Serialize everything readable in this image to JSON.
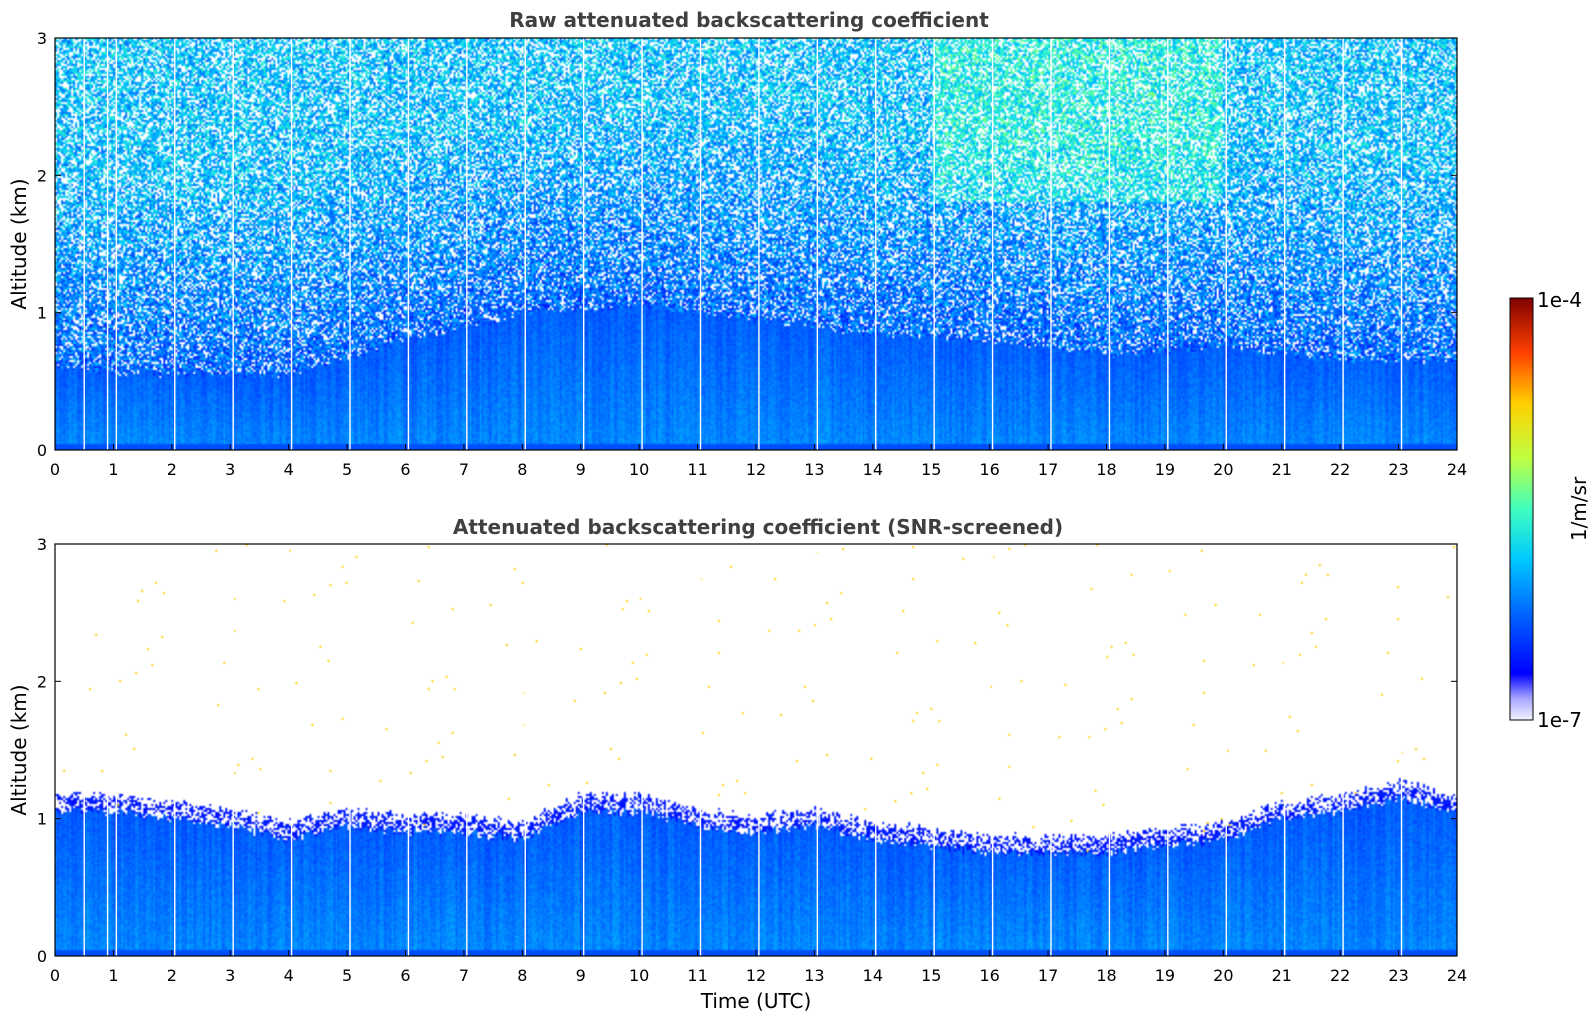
{
  "chart_data": [
    {
      "type": "heatmap",
      "title": "Raw attenuated backscattering coefficient",
      "xlabel": "",
      "ylabel": "Altitude (km)",
      "xlim": [
        0,
        24
      ],
      "ylim": [
        0,
        3
      ],
      "xticks": [
        "0",
        "1",
        "2",
        "3",
        "4",
        "5",
        "6",
        "7",
        "8",
        "9",
        "10",
        "11",
        "12",
        "13",
        "14",
        "15",
        "16",
        "17",
        "18",
        "19",
        "20",
        "21",
        "22",
        "23",
        "24"
      ],
      "yticks": [
        "0",
        "1",
        "2",
        "3"
      ],
      "screened": false,
      "boundary_layer_top_km": {
        "x": [
          0,
          2,
          4,
          6,
          8,
          10,
          12,
          14,
          16,
          18,
          20,
          22,
          24
        ],
        "y": [
          0.6,
          0.55,
          0.55,
          0.8,
          1.0,
          1.05,
          0.95,
          0.85,
          0.8,
          0.7,
          0.75,
          0.65,
          0.65
        ]
      },
      "data_gaps_hours": [
        0.5,
        0.9,
        1.05,
        2.05,
        3.05,
        4.05,
        5.05,
        6.05,
        7.05,
        8.05,
        9.05,
        10.05,
        11.05,
        12.05,
        13.05,
        14.05,
        15.05,
        16.05,
        17.05,
        18.05,
        19.05,
        20.05,
        21.05,
        22.05,
        23.05
      ]
    },
    {
      "type": "heatmap",
      "title": "Attenuated backscattering coefficient (SNR-screened)",
      "xlabel": "Time (UTC)",
      "ylabel": "Altitude (km)",
      "xlim": [
        0,
        24
      ],
      "ylim": [
        0,
        3
      ],
      "xticks": [
        "0",
        "1",
        "2",
        "3",
        "4",
        "5",
        "6",
        "7",
        "8",
        "9",
        "10",
        "11",
        "12",
        "13",
        "14",
        "15",
        "16",
        "17",
        "18",
        "19",
        "20",
        "21",
        "22",
        "23",
        "24"
      ],
      "yticks": [
        "0",
        "1",
        "2",
        "3"
      ],
      "screened": true,
      "boundary_layer_top_km": {
        "x": [
          0,
          1,
          2,
          3,
          4,
          5,
          6,
          7,
          8,
          9,
          10,
          11,
          12,
          13,
          14,
          15,
          16,
          17,
          18,
          19,
          20,
          21,
          22,
          23,
          24
        ],
        "y": [
          1.05,
          1.05,
          1.0,
          0.95,
          0.85,
          0.95,
          0.9,
          0.9,
          0.85,
          1.05,
          1.05,
          0.95,
          0.9,
          0.95,
          0.85,
          0.8,
          0.75,
          0.75,
          0.75,
          0.8,
          0.85,
          1.0,
          1.05,
          1.15,
          1.05
        ]
      },
      "data_gaps_hours": [
        0.5,
        0.9,
        1.05,
        2.05,
        3.05,
        4.05,
        5.05,
        6.05,
        7.05,
        8.05,
        9.05,
        10.05,
        11.05,
        12.05,
        13.05,
        14.05,
        15.05,
        16.05,
        17.05,
        18.05,
        19.05,
        20.05,
        21.05,
        22.05,
        23.05
      ]
    }
  ],
  "colorbar": {
    "label": "1/m/sr",
    "max_label": "1e-4",
    "min_label": "1e-7",
    "scale": "log",
    "colormap": "jet"
  }
}
